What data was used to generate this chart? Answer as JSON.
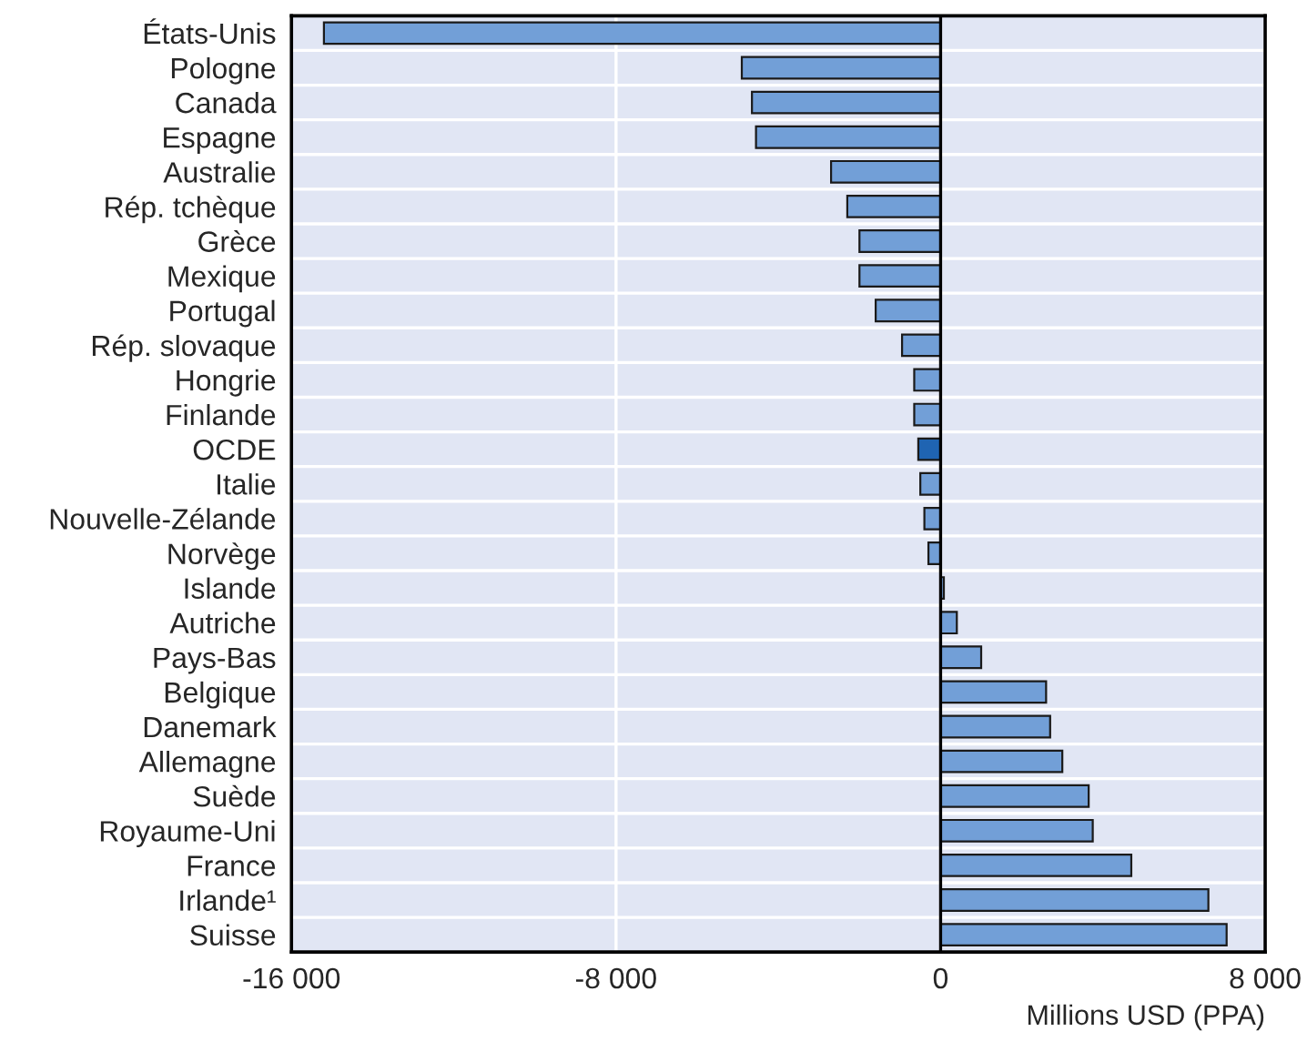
{
  "chart_data": {
    "type": "bar",
    "orientation": "horizontal",
    "categories": [
      "États-Unis",
      "Pologne",
      "Canada",
      "Espagne",
      "Australie",
      "Rép. tchèque",
      "Grèce",
      "Mexique",
      "Portugal",
      "Rép. slovaque",
      "Hongrie",
      "Finlande",
      "OCDE",
      "Italie",
      "Nouvelle-Zélande",
      "Norvège",
      "Islande",
      "Autriche",
      "Pays-Bas",
      "Belgique",
      "Danemark",
      "Allemagne",
      "Suède",
      "Royaume-Uni",
      "France",
      "Irlande¹",
      "Suisse"
    ],
    "values": [
      -15200,
      -4900,
      -4650,
      -4550,
      -2700,
      -2300,
      -2000,
      -2000,
      -1600,
      -950,
      -650,
      -650,
      -550,
      -500,
      -400,
      -300,
      80,
      400,
      1000,
      2600,
      2700,
      3000,
      3650,
      3750,
      4700,
      6600,
      7050
    ],
    "colors": [
      "#729fd7",
      "#729fd7",
      "#729fd7",
      "#729fd7",
      "#729fd7",
      "#729fd7",
      "#729fd7",
      "#729fd7",
      "#729fd7",
      "#729fd7",
      "#729fd7",
      "#729fd7",
      "#1f64b2",
      "#729fd7",
      "#729fd7",
      "#729fd7",
      "#729fd7",
      "#729fd7",
      "#729fd7",
      "#729fd7",
      "#729fd7",
      "#729fd7",
      "#729fd7",
      "#729fd7",
      "#729fd7",
      "#729fd7",
      "#729fd7"
    ],
    "xlim": [
      -16000,
      8000
    ],
    "xticks": [
      {
        "value": -16000,
        "label": "-16 000"
      },
      {
        "value": -8000,
        "label": "-8 000"
      },
      0,
      {
        "value": 8000,
        "label": "8 000"
      }
    ],
    "xlabel": "Millions USD (PPA)",
    "ref_lines": [
      {
        "axis": "x",
        "value": 0,
        "color": "#000000"
      }
    ],
    "grid": "x"
  }
}
